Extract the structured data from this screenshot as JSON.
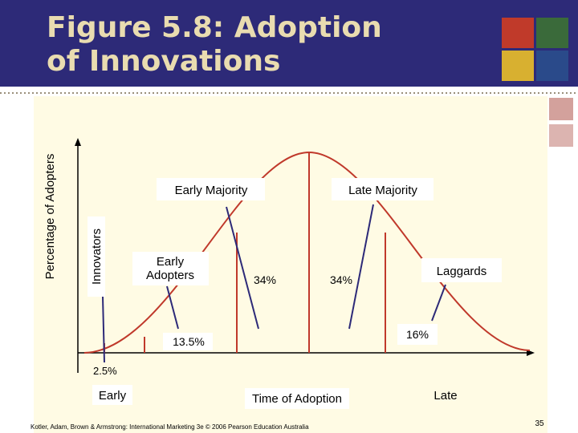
{
  "header": {
    "title": "Figure 5.8: Adoption of Innovations"
  },
  "diagram": {
    "y_axis_label": "Percentage of Adopters",
    "x_axis_label": "Time of Adoption",
    "x_start": "Early",
    "x_end": "Late",
    "segments": [
      {
        "name": "Innovators",
        "share": "2.5%"
      },
      {
        "name": "Early Adopters",
        "share": "13.5%"
      },
      {
        "name": "Early Majority",
        "share": "34%"
      },
      {
        "name": "Late Majority",
        "share": "34%"
      },
      {
        "name": "Laggards",
        "share": "16%"
      }
    ]
  },
  "footer": {
    "citation": "Kotler, Adam, Brown & Armstrong: International Marketing 3e © 2006 Pearson Education Australia",
    "page": 35
  }
}
